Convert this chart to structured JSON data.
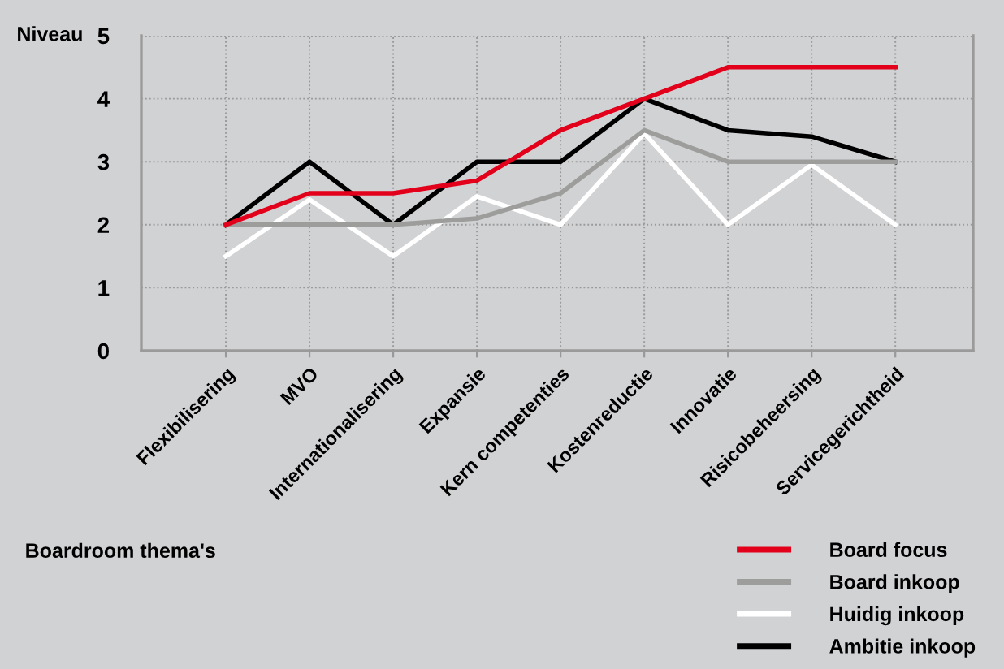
{
  "chart_data": {
    "type": "line",
    "xlabel": "Boardroom thema's",
    "ylabel": "Niveau",
    "categories": [
      "Flexibilisering",
      "MVO",
      "Internationalisering",
      "Expansie",
      "Kern competenties",
      "Kostenreductie",
      "Innovatie",
      "Risicobeheersing",
      "Servicegerichtheid"
    ],
    "series": [
      {
        "name": "Board focus",
        "color": "#e2001a",
        "values": [
          2,
          2.5,
          2.5,
          2.7,
          3.5,
          4,
          4.5,
          4.5,
          4.5
        ]
      },
      {
        "name": "Board inkoop",
        "color": "#9d9d9c",
        "values": [
          2,
          2,
          2,
          2.1,
          2.5,
          3.5,
          3,
          3,
          3
        ]
      },
      {
        "name": "Huidig inkoop",
        "color": "#ffffff",
        "values": [
          1.5,
          2.4,
          1.5,
          2.45,
          2,
          3.45,
          2,
          2.95,
          2
        ]
      },
      {
        "name": "Ambitie inkoop",
        "color": "#000000",
        "values": [
          2,
          3,
          2,
          3,
          3,
          4,
          3.5,
          3.4,
          3
        ]
      }
    ],
    "ylim": [
      0,
      5
    ],
    "yticks": [
      0,
      1,
      2,
      3,
      4,
      5
    ],
    "grid": true,
    "legend": "bottom right",
    "marker": "none",
    "line_style": "solid"
  }
}
